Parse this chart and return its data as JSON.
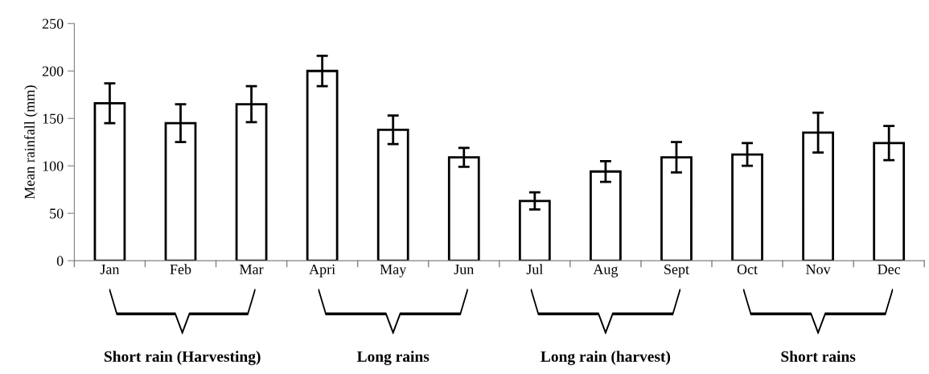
{
  "chart_data": {
    "type": "bar",
    "ylabel": "Mean rainfall (mm)",
    "categories": [
      "Jan",
      "Feb",
      "Mar",
      "Apri",
      "May",
      "Jun",
      "Jul",
      "Aug",
      "Sept",
      "Oct",
      "Nov",
      "Dec"
    ],
    "values": [
      166,
      145,
      165,
      200,
      138,
      109,
      63,
      94,
      109,
      112,
      135,
      124
    ],
    "errors": [
      21,
      20,
      19,
      16,
      15,
      10,
      9,
      11,
      16,
      12,
      21,
      18
    ],
    "color": "#ffffff",
    "ylim": [
      0,
      250
    ],
    "yticks": [
      0,
      50,
      100,
      150,
      200,
      250
    ],
    "grid": false,
    "annotations": [
      "Short rain (Harvesting)",
      "Long rains",
      "Long rain (harvest)",
      "Short rains"
    ]
  }
}
